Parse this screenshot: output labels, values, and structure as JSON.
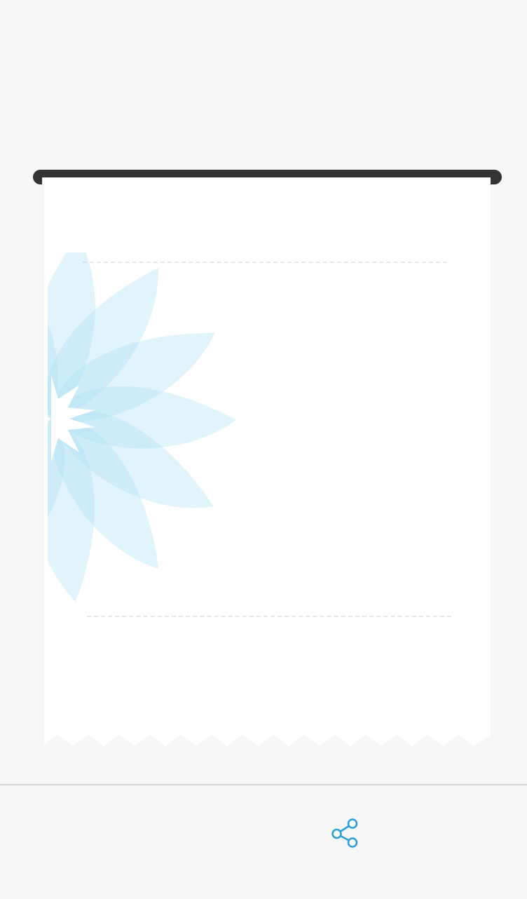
{
  "receipt": {
    "watermark_icon": "flower-logo-icon",
    "edge_style": "zigzag-tear"
  },
  "toolbar": {
    "share_icon": "share-icon"
  },
  "colors": {
    "background": "#f7f7f7",
    "printer_bar": "#333333",
    "paper": "#ffffff",
    "accent": "#2a9fd8",
    "watermark_petal": "#bfe6f7"
  }
}
